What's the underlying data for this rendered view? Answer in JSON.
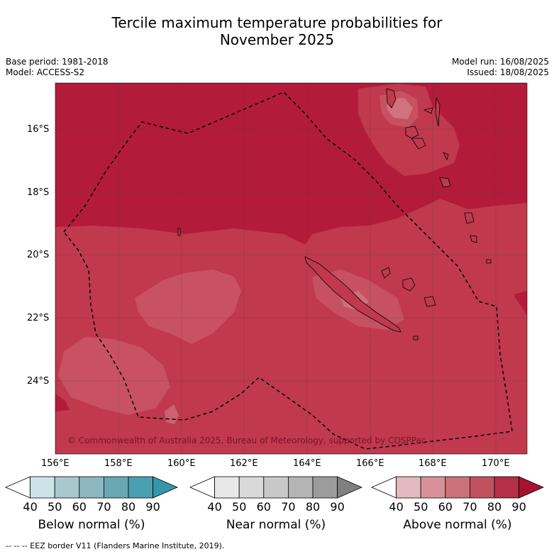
{
  "title_line1": "Tercile maximum temperature probabilities for",
  "title_line2": "November 2025",
  "meta_left": [
    "Base period: 1981-2018",
    "Model: ACCESS-S2"
  ],
  "meta_right": [
    "Model run: 16/08/2025",
    "Issued: 18/08/2025"
  ],
  "map": {
    "lat_labels": [
      "16°S",
      "18°S",
      "20°S",
      "22°S",
      "24°S"
    ],
    "lon_labels": [
      "156°E",
      "158°E",
      "160°E",
      "162°E",
      "164°E",
      "166°E",
      "168°E",
      "170°E"
    ],
    "copyright": "© Commonwealth of Australia 2025, Bureau of Meteorology, supported by COSPPac",
    "colors": {
      "above_80_90": "#b21c3a",
      "above_70_80": "#c0394d",
      "above_60_70": "#cb5b6a",
      "above_50_60": "#d88993"
    }
  },
  "colorbars": [
    {
      "label": "Below normal (%)",
      "ticks": [
        "40",
        "50",
        "60",
        "70",
        "80",
        "90"
      ],
      "colors": [
        "#ffffff",
        "#cce3e8",
        "#a8c8ce",
        "#8cb6c0",
        "#6aa7b5",
        "#48a0b0",
        "#3795a8"
      ]
    },
    {
      "label": "Near normal (%)",
      "ticks": [
        "40",
        "50",
        "60",
        "70",
        "80",
        "90"
      ],
      "colors": [
        "#ffffff",
        "#e8e8e8",
        "#d9d9d9",
        "#c8c8c8",
        "#b4b4b4",
        "#9c9c9c",
        "#808080"
      ]
    },
    {
      "label": "Above normal (%)",
      "ticks": [
        "40",
        "50",
        "60",
        "70",
        "80",
        "90"
      ],
      "colors": [
        "#ffffff",
        "#e3b8be",
        "#d8919a",
        "#cb7279",
        "#c0525f",
        "#b42f47",
        "#a8122e"
      ]
    }
  ],
  "footer": "--  --  -- EEZ border V11 (Flanders Marine Institute, 2019)."
}
